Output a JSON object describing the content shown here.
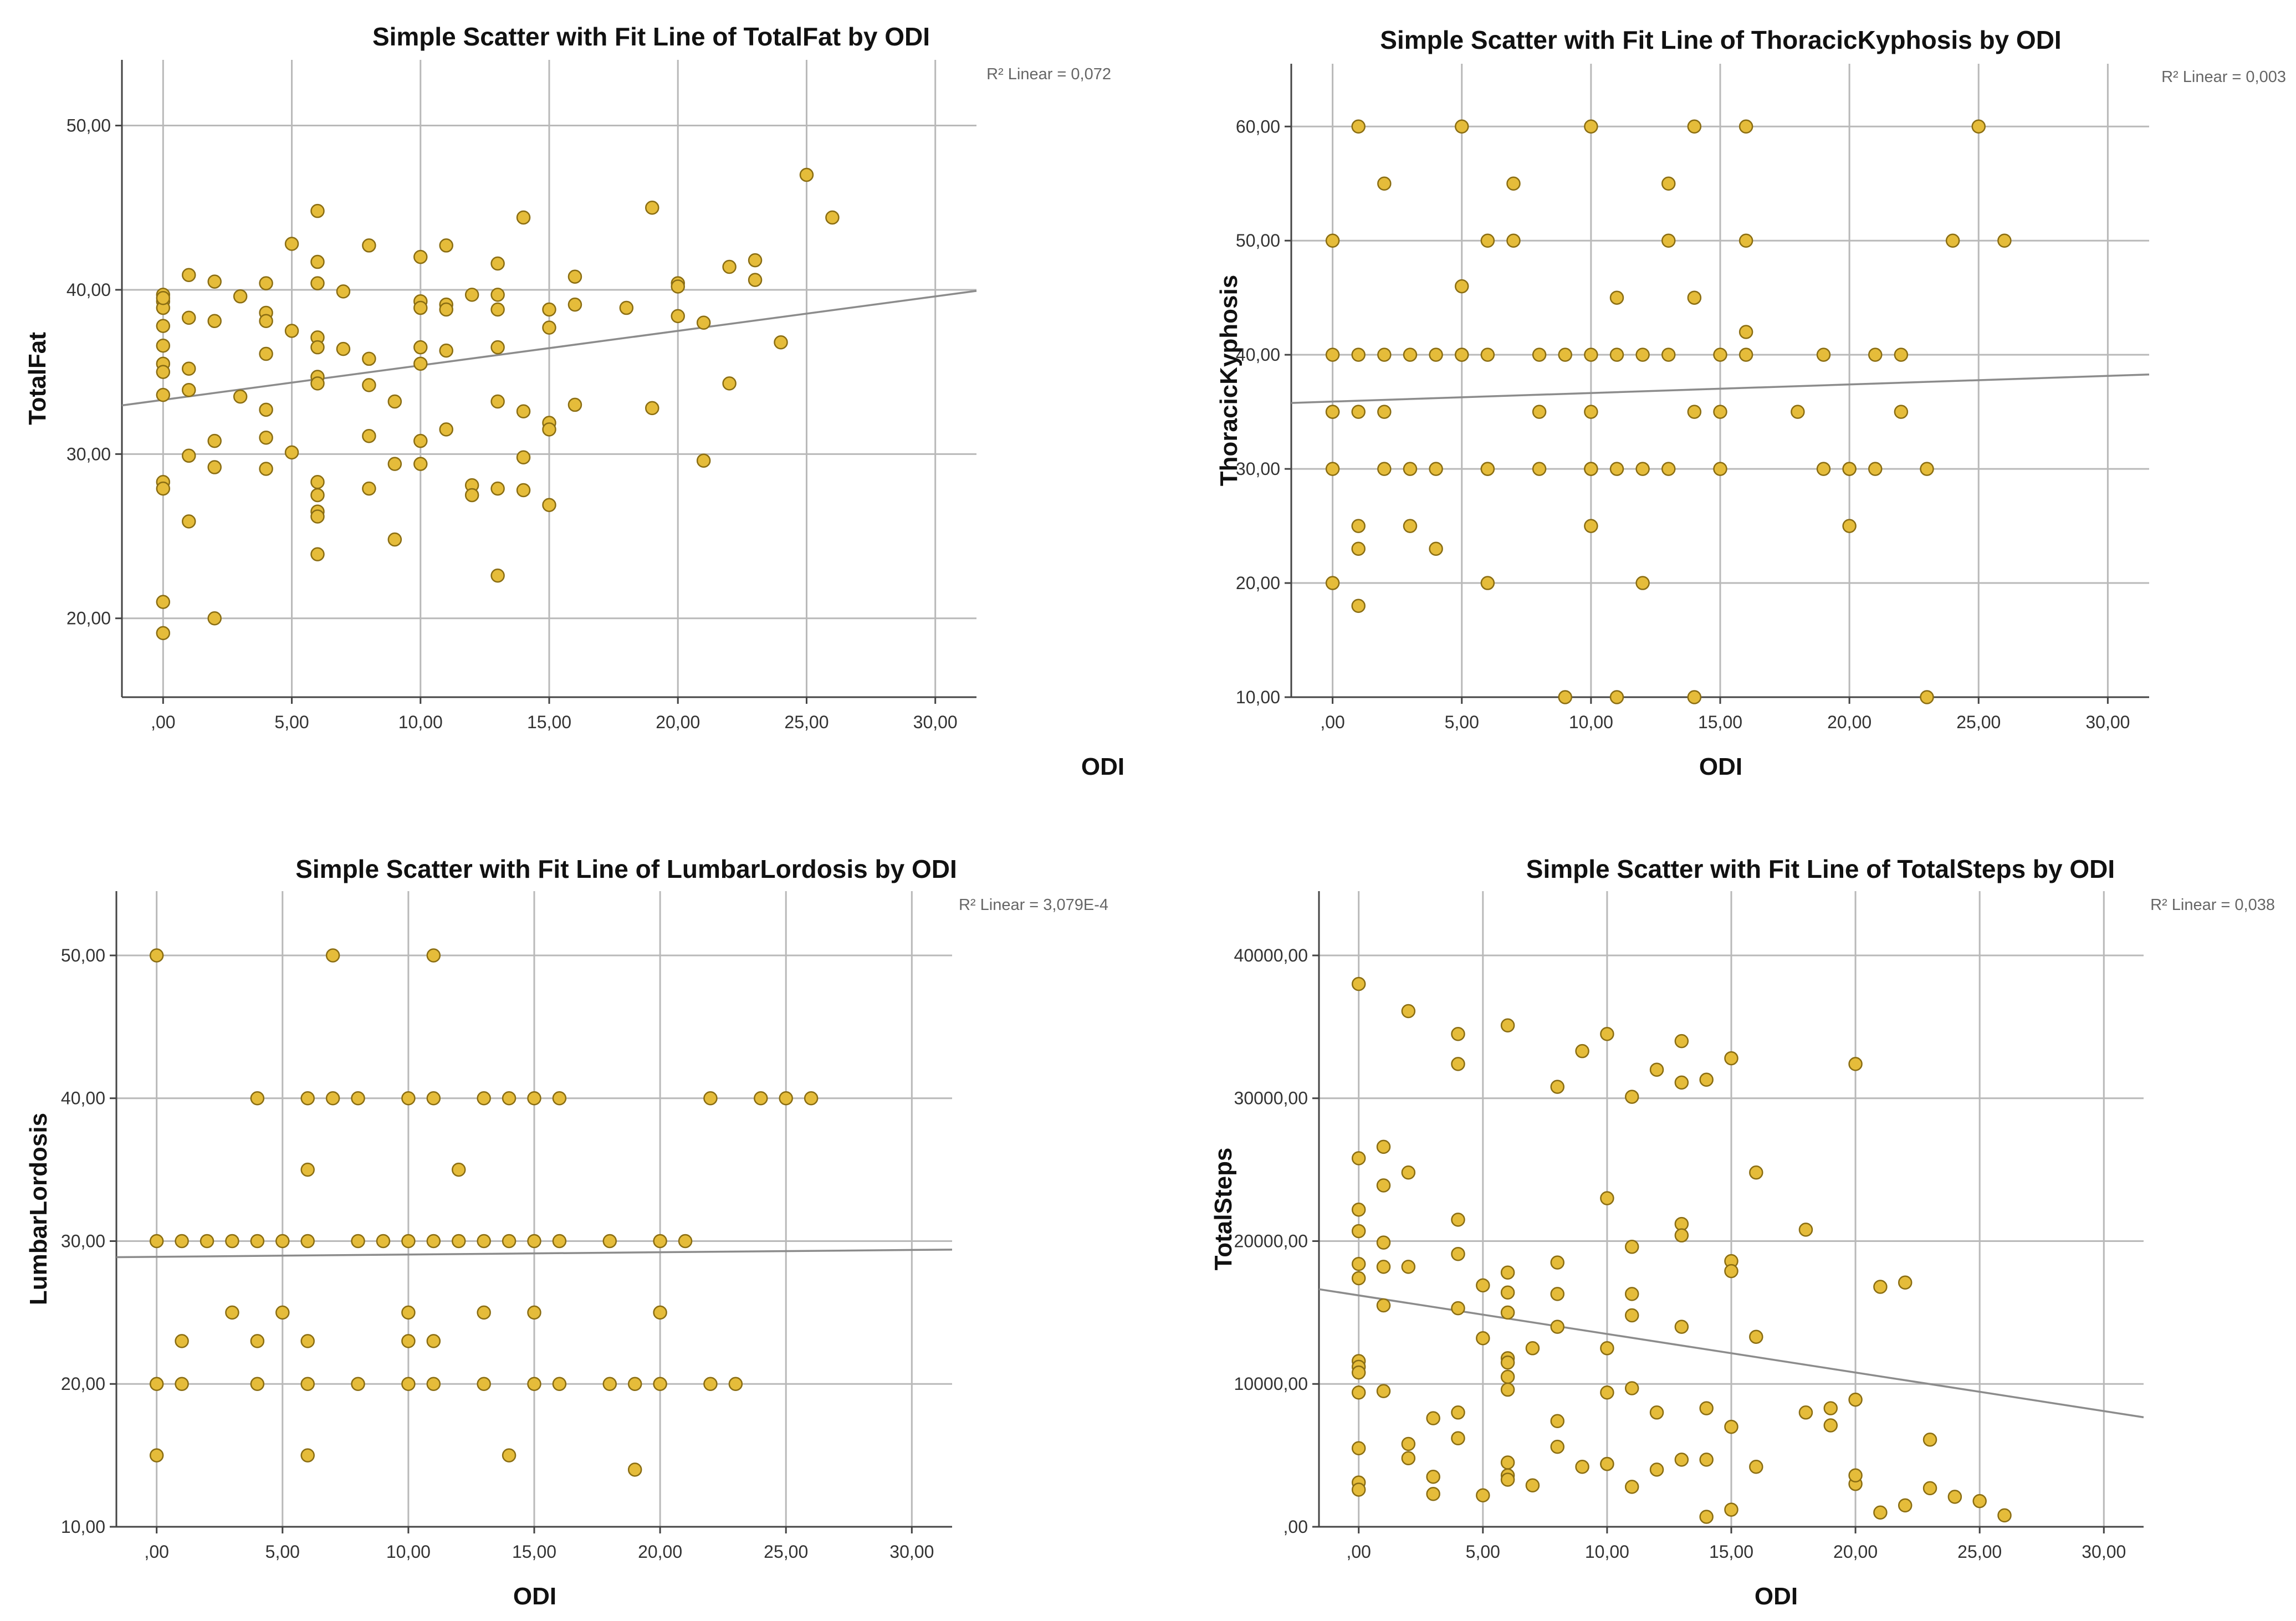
{
  "colors": {
    "point_fill": "#E5BC3A",
    "point_stroke": "#8A6D12",
    "fit_line": "#8C8C8C"
  },
  "chart_data": [
    {
      "type": "scatter",
      "title": "Simple Scatter with Fit Line of TotalFat by ODI",
      "xlabel": "ODI",
      "ylabel": "TotalFat",
      "r2_label": "R² Linear = 0,072",
      "xlim": [
        -1.6,
        31.6
      ],
      "ylim": [
        15.2,
        54.0
      ],
      "x_ticks": [
        0,
        5,
        10,
        15,
        20,
        25,
        30
      ],
      "x_tick_labels": [
        ",00",
        "5,00",
        "10,00",
        "15,00",
        "20,00",
        "25,00",
        "30,00"
      ],
      "y_ticks": [
        20,
        30,
        40,
        50
      ],
      "y_tick_labels": [
        "20,00",
        "30,00",
        "40,00",
        "50,00"
      ],
      "fit": {
        "intercept": 33.3,
        "slope": 0.21
      },
      "x": [
        0,
        0,
        0,
        0,
        0,
        0,
        0,
        0,
        0,
        0,
        0,
        0,
        0,
        1,
        1,
        1,
        1,
        1,
        1,
        2,
        2,
        2,
        2,
        2,
        3,
        3,
        4,
        4,
        4,
        4,
        4,
        4,
        4,
        5,
        5,
        5,
        6,
        6,
        6,
        6,
        6,
        6,
        6,
        6,
        6,
        6,
        6,
        6,
        7,
        7,
        8,
        8,
        8,
        8,
        8,
        9,
        9,
        9,
        10,
        10,
        10,
        10,
        10,
        10,
        10,
        11,
        11,
        11,
        11,
        11,
        12,
        12,
        12,
        13,
        13,
        13,
        13,
        13,
        13,
        13,
        14,
        14,
        14,
        14,
        15,
        15,
        15,
        15,
        15,
        16,
        16,
        16,
        18,
        19,
        19,
        20,
        20,
        20,
        21,
        21,
        22,
        22,
        23,
        23,
        24,
        25,
        26
      ],
      "y": [
        39.7,
        39.3,
        38.9,
        37.8,
        36.6,
        35.5,
        35.0,
        33.6,
        28.3,
        27.9,
        21.0,
        19.1,
        39.5,
        40.9,
        38.3,
        35.2,
        33.9,
        29.9,
        25.9,
        40.5,
        38.1,
        30.8,
        29.2,
        20.0,
        39.6,
        33.5,
        40.4,
        38.6,
        38.1,
        36.1,
        32.7,
        31.0,
        29.1,
        42.8,
        37.5,
        30.1,
        44.8,
        41.7,
        40.4,
        37.1,
        36.5,
        34.7,
        34.3,
        28.3,
        27.5,
        26.5,
        26.2,
        23.9,
        39.9,
        36.4,
        42.7,
        35.8,
        34.2,
        31.1,
        27.9,
        33.2,
        29.4,
        24.8,
        42.0,
        39.3,
        38.9,
        36.5,
        35.5,
        30.8,
        29.4,
        42.7,
        39.1,
        38.8,
        36.3,
        31.5,
        39.7,
        28.1,
        27.5,
        41.6,
        39.7,
        38.8,
        36.5,
        33.2,
        27.9,
        22.6,
        44.4,
        32.6,
        29.8,
        27.8,
        38.8,
        37.7,
        31.9,
        31.5,
        26.9,
        40.8,
        39.1,
        33.0,
        38.9,
        45.0,
        32.8,
        40.4,
        40.2,
        38.4,
        38.0,
        29.6,
        41.4,
        34.3,
        41.8,
        40.6,
        36.8,
        47.0,
        44.4
      ]
    },
    {
      "type": "scatter",
      "title": "Simple Scatter with Fit Line of ThoracicKyphosis by ODI",
      "xlabel": "ODI",
      "ylabel": "ThoracicKyphosis",
      "r2_label": "R² Linear = 0,003",
      "xlim": [
        -1.6,
        31.6
      ],
      "ylim": [
        10.0,
        65.5
      ],
      "x_ticks": [
        0,
        5,
        10,
        15,
        20,
        25,
        30
      ],
      "x_tick_labels": [
        ",00",
        "5,00",
        "10,00",
        "15,00",
        "20,00",
        "25,00",
        "30,00"
      ],
      "y_ticks": [
        10,
        20,
        30,
        40,
        50,
        60
      ],
      "y_tick_labels": [
        "10,00",
        "20,00",
        "30,00",
        "40,00",
        "50,00",
        "60,00"
      ],
      "fit": {
        "intercept": 35.9,
        "slope": 0.075
      },
      "x": [
        0,
        0,
        0,
        0,
        0,
        0,
        1,
        1,
        1,
        1,
        1,
        1,
        2,
        2,
        2,
        2,
        3,
        3,
        3,
        4,
        4,
        4,
        5,
        5,
        5,
        5,
        6,
        6,
        6,
        6,
        6,
        7,
        7,
        8,
        8,
        8,
        9,
        9,
        10,
        10,
        10,
        10,
        10,
        10,
        11,
        11,
        11,
        11,
        12,
        12,
        12,
        13,
        13,
        13,
        13,
        14,
        14,
        14,
        14,
        15,
        15,
        15,
        16,
        16,
        16,
        16,
        18,
        19,
        19,
        20,
        20,
        20,
        21,
        21,
        22,
        22,
        23,
        23,
        24,
        25,
        26
      ],
      "y": [
        50,
        40,
        35,
        35,
        30,
        20,
        60,
        40,
        35,
        25,
        23,
        18,
        55,
        40,
        35,
        30,
        40,
        30,
        25,
        40,
        30,
        23,
        60,
        46,
        40,
        40,
        50,
        40,
        30,
        30,
        20,
        55,
        50,
        40,
        35,
        30,
        40,
        10,
        60,
        40,
        35,
        30,
        30,
        25,
        45,
        40,
        30,
        10,
        40,
        30,
        20,
        55,
        50,
        40,
        30,
        60,
        45,
        35,
        10,
        40,
        35,
        30,
        60,
        50,
        42,
        40,
        35,
        40,
        30,
        30,
        30,
        25,
        40,
        30,
        40,
        35,
        30,
        10,
        50,
        60,
        50
      ]
    },
    {
      "type": "scatter",
      "title": "Simple Scatter with Fit Line of LumbarLordosis by ODI",
      "xlabel": "ODI",
      "ylabel": "LumbarLordosis",
      "r2_label": "R² Linear = 3,079E-4",
      "xlim": [
        -1.6,
        31.6
      ],
      "ylim": [
        10.0,
        54.5
      ],
      "x_ticks": [
        0,
        5,
        10,
        15,
        20,
        25,
        30
      ],
      "x_tick_labels": [
        ",00",
        "5,00",
        "10,00",
        "15,00",
        "20,00",
        "25,00",
        "30,00"
      ],
      "y_ticks": [
        10,
        20,
        30,
        40,
        50
      ],
      "y_tick_labels": [
        "10,00",
        "20,00",
        "30,00",
        "40,00",
        "50,00"
      ],
      "fit": {
        "intercept": 28.9,
        "slope": 0.016
      },
      "x": [
        0,
        0,
        0,
        0,
        1,
        1,
        1,
        2,
        3,
        3,
        4,
        4,
        4,
        4,
        5,
        5,
        6,
        6,
        6,
        6,
        6,
        6,
        7,
        7,
        8,
        8,
        8,
        9,
        10,
        10,
        10,
        10,
        10,
        11,
        11,
        11,
        11,
        11,
        12,
        12,
        13,
        13,
        13,
        13,
        14,
        14,
        14,
        15,
        15,
        15,
        15,
        16,
        16,
        16,
        18,
        18,
        19,
        19,
        20,
        20,
        20,
        21,
        22,
        22,
        23,
        24,
        25,
        26
      ],
      "y": [
        50,
        30,
        20,
        15,
        30,
        23,
        20,
        30,
        30,
        25,
        40,
        30,
        23,
        20,
        30,
        25,
        40,
        35,
        30,
        23,
        20,
        15,
        50,
        40,
        40,
        30,
        20,
        30,
        40,
        30,
        25,
        23,
        20,
        50,
        40,
        30,
        23,
        20,
        35,
        30,
        40,
        30,
        25,
        20,
        40,
        30,
        15,
        40,
        30,
        25,
        20,
        40,
        30,
        20,
        30,
        20,
        20,
        14,
        30,
        25,
        20,
        30,
        40,
        20,
        20,
        40,
        40,
        40
      ]
    },
    {
      "type": "scatter",
      "title": "Simple Scatter with Fit Line of TotalSteps by ODI",
      "xlabel": "ODI",
      "ylabel": "TotalSteps",
      "r2_label": "R² Linear = 0,038",
      "xlim": [
        -1.6,
        31.6
      ],
      "ylim": [
        0,
        44500
      ],
      "x_ticks": [
        0,
        5,
        10,
        15,
        20,
        25,
        30
      ],
      "x_tick_labels": [
        ",00",
        "5,00",
        "10,00",
        "15,00",
        "20,00",
        "25,00",
        "30,00"
      ],
      "y_ticks": [
        0,
        10000,
        20000,
        30000,
        40000
      ],
      "y_tick_labels": [
        ",00",
        "10000,00",
        "20000,00",
        "30000,00",
        "40000,00"
      ],
      "fit": {
        "intercept": 16200,
        "slope": -270
      },
      "x": [
        0,
        0,
        0,
        0,
        0,
        0,
        0,
        0,
        0,
        0,
        0,
        0,
        0,
        1,
        1,
        1,
        1,
        1,
        1,
        2,
        2,
        2,
        2,
        2,
        3,
        3,
        3,
        4,
        4,
        4,
        4,
        4,
        4,
        4,
        5,
        5,
        5,
        6,
        6,
        6,
        6,
        6,
        6,
        6,
        6,
        6,
        6,
        6,
        7,
        7,
        8,
        8,
        8,
        8,
        8,
        8,
        9,
        9,
        10,
        10,
        10,
        10,
        10,
        10,
        11,
        11,
        11,
        11,
        11,
        11,
        12,
        12,
        12,
        13,
        13,
        13,
        13,
        13,
        13,
        14,
        14,
        14,
        14,
        15,
        15,
        15,
        15,
        15,
        16,
        16,
        16,
        18,
        18,
        19,
        19,
        20,
        20,
        20,
        20,
        21,
        21,
        22,
        22,
        23,
        23,
        24,
        25,
        26
      ],
      "y": [
        38000,
        25800,
        22200,
        20700,
        18400,
        17400,
        11600,
        11200,
        10800,
        9400,
        5500,
        3100,
        2600,
        26600,
        23900,
        19900,
        18200,
        15500,
        9500,
        36100,
        24800,
        18200,
        5800,
        4800,
        7600,
        3500,
        2300,
        34500,
        32400,
        21500,
        19100,
        15300,
        8000,
        6200,
        2200,
        16900,
        13200,
        9600,
        35100,
        17800,
        16400,
        15000,
        11800,
        11500,
        10500,
        4500,
        3600,
        3300,
        2900,
        12500,
        7400,
        30800,
        18500,
        16300,
        14000,
        5600,
        4200,
        33300,
        4400,
        34500,
        23000,
        12500,
        9400,
        4400,
        30100,
        19600,
        16300,
        14800,
        9700,
        2800,
        32000,
        8000,
        4000,
        34000,
        31100,
        21200,
        20400,
        14000,
        4700,
        700,
        31300,
        8300,
        4700,
        1200,
        32800,
        18600,
        17900,
        7000,
        4200,
        24800,
        13300,
        8000,
        20800,
        8300,
        7100,
        3000,
        32400,
        8900,
        3600,
        1000,
        16800,
        1500,
        17100,
        6100,
        2700,
        2100,
        1800,
        800
      ]
    }
  ]
}
